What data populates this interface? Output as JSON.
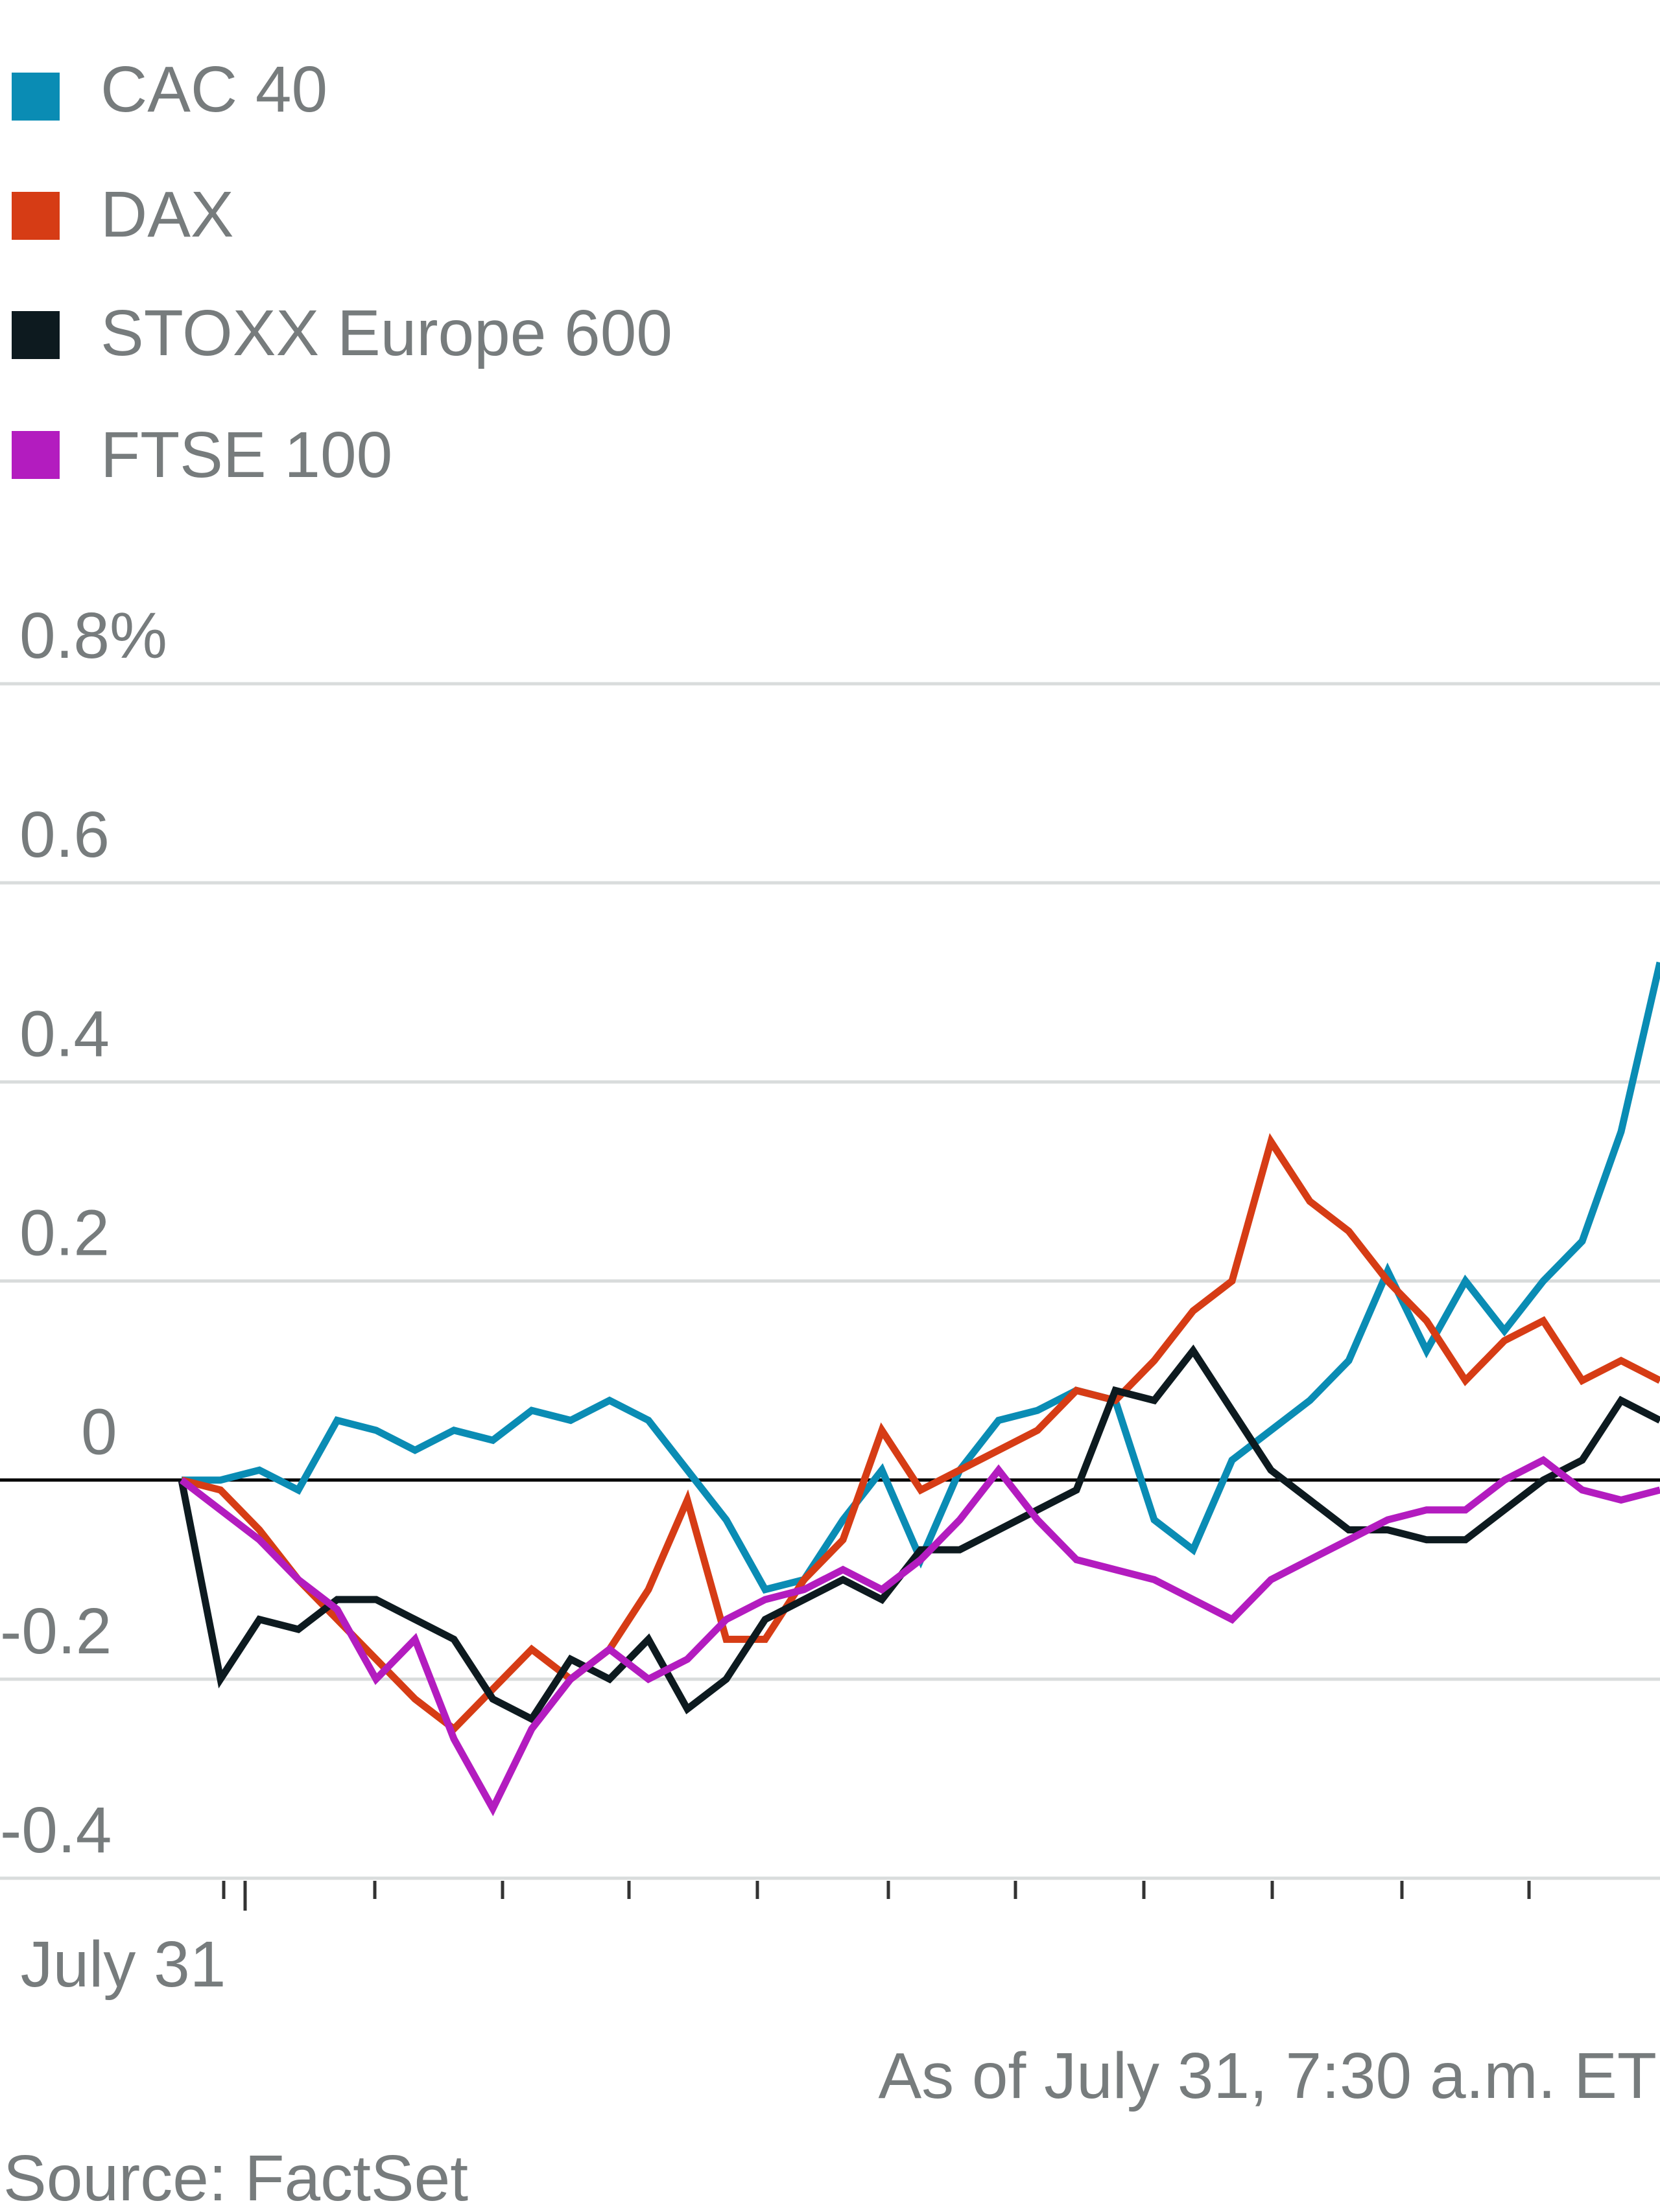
{
  "chart_data": {
    "type": "line",
    "legend_position": "top-left",
    "grid": true,
    "y_unit": "%",
    "ylim": [
      -0.4,
      0.8
    ],
    "y_ticks": [
      0.8,
      0.6,
      0.4,
      0.2,
      0,
      -0.2,
      -0.4
    ],
    "y_tick_labels": [
      "0.8%",
      "0.6",
      "0.4",
      "0.2",
      "0",
      "-0.2",
      "-0.4"
    ],
    "x_label": "July 31",
    "annotation": "As of July 31, 7:30 a.m. ET",
    "source": "Source: FactSet",
    "series": [
      {
        "name": "CAC 40",
        "color": "#0a8cb4",
        "points": [
          [
            0,
            0
          ],
          [
            1,
            0
          ],
          [
            2,
            0.01
          ],
          [
            3,
            -0.01
          ],
          [
            4,
            0.06
          ],
          [
            5,
            0.05
          ],
          [
            6,
            0.03
          ],
          [
            7,
            0.05
          ],
          [
            8,
            0.04
          ],
          [
            9,
            0.07
          ],
          [
            10,
            0.06
          ],
          [
            11,
            0.08
          ],
          [
            12,
            0.06
          ],
          [
            13,
            0.01
          ],
          [
            14,
            -0.04
          ],
          [
            15,
            -0.11
          ],
          [
            16,
            -0.1
          ],
          [
            17,
            -0.04
          ],
          [
            18,
            0.01
          ],
          [
            19,
            -0.08
          ],
          [
            20,
            0.01
          ],
          [
            21,
            0.06
          ],
          [
            22,
            0.07
          ],
          [
            23,
            0.09
          ],
          [
            24,
            0.08
          ],
          [
            25,
            -0.04
          ],
          [
            26,
            -0.07
          ],
          [
            27,
            0.02
          ],
          [
            28,
            0.05
          ],
          [
            29,
            0.08
          ],
          [
            30,
            0.12
          ],
          [
            31,
            0.21
          ],
          [
            32,
            0.13
          ],
          [
            33,
            0.2
          ],
          [
            34,
            0.15
          ],
          [
            35,
            0.2
          ],
          [
            36,
            0.24
          ],
          [
            37,
            0.35
          ],
          [
            38,
            0.52
          ]
        ]
      },
      {
        "name": "DAX",
        "color": "#d63c15",
        "points": [
          [
            0,
            0
          ],
          [
            1,
            -0.01
          ],
          [
            2,
            -0.05
          ],
          [
            3,
            -0.1
          ],
          [
            4,
            -0.14
          ],
          [
            5,
            -0.18
          ],
          [
            6,
            -0.22
          ],
          [
            7,
            -0.25
          ],
          [
            8,
            -0.21
          ],
          [
            9,
            -0.17
          ],
          [
            10,
            -0.2
          ],
          [
            11,
            -0.17
          ],
          [
            12,
            -0.11
          ],
          [
            13,
            -0.02
          ],
          [
            14,
            -0.16
          ],
          [
            15,
            -0.16
          ],
          [
            16,
            -0.1
          ],
          [
            17,
            -0.06
          ],
          [
            18,
            0.05
          ],
          [
            19,
            -0.01
          ],
          [
            20,
            0.01
          ],
          [
            21,
            0.03
          ],
          [
            22,
            0.05
          ],
          [
            23,
            0.09
          ],
          [
            24,
            0.08
          ],
          [
            25,
            0.12
          ],
          [
            26,
            0.17
          ],
          [
            27,
            0.2
          ],
          [
            28,
            0.34
          ],
          [
            29,
            0.28
          ],
          [
            30,
            0.25
          ],
          [
            31,
            0.2
          ],
          [
            32,
            0.16
          ],
          [
            33,
            0.1
          ],
          [
            34,
            0.14
          ],
          [
            35,
            0.16
          ],
          [
            36,
            0.1
          ],
          [
            37,
            0.12
          ],
          [
            38,
            0.1
          ]
        ]
      },
      {
        "name": "STOXX Europe 600",
        "color": "#0d1a1f",
        "points": [
          [
            0,
            0
          ],
          [
            1,
            -0.2
          ],
          [
            2,
            -0.14
          ],
          [
            3,
            -0.15
          ],
          [
            4,
            -0.12
          ],
          [
            5,
            -0.12
          ],
          [
            6,
            -0.14
          ],
          [
            7,
            -0.16
          ],
          [
            8,
            -0.22
          ],
          [
            9,
            -0.24
          ],
          [
            10,
            -0.18
          ],
          [
            11,
            -0.2
          ],
          [
            12,
            -0.16
          ],
          [
            13,
            -0.23
          ],
          [
            14,
            -0.2
          ],
          [
            15,
            -0.14
          ],
          [
            16,
            -0.12
          ],
          [
            17,
            -0.1
          ],
          [
            18,
            -0.12
          ],
          [
            19,
            -0.07
          ],
          [
            20,
            -0.07
          ],
          [
            21,
            -0.05
          ],
          [
            22,
            -0.03
          ],
          [
            23,
            -0.01
          ],
          [
            24,
            0.09
          ],
          [
            25,
            0.08
          ],
          [
            26,
            0.13
          ],
          [
            27,
            0.07
          ],
          [
            28,
            0.01
          ],
          [
            29,
            -0.02
          ],
          [
            30,
            -0.05
          ],
          [
            31,
            -0.05
          ],
          [
            32,
            -0.06
          ],
          [
            33,
            -0.06
          ],
          [
            34,
            -0.03
          ],
          [
            35,
            0
          ],
          [
            36,
            0.02
          ],
          [
            37,
            0.08
          ],
          [
            38,
            0.06
          ]
        ]
      },
      {
        "name": "FTSE 100",
        "color": "#b31cbf",
        "points": [
          [
            0,
            0
          ],
          [
            1,
            -0.03
          ],
          [
            2,
            -0.06
          ],
          [
            3,
            -0.1
          ],
          [
            4,
            -0.13
          ],
          [
            5,
            -0.2
          ],
          [
            6,
            -0.16
          ],
          [
            7,
            -0.26
          ],
          [
            8,
            -0.33
          ],
          [
            9,
            -0.25
          ],
          [
            10,
            -0.2
          ],
          [
            11,
            -0.17
          ],
          [
            12,
            -0.2
          ],
          [
            13,
            -0.18
          ],
          [
            14,
            -0.14
          ],
          [
            15,
            -0.12
          ],
          [
            16,
            -0.11
          ],
          [
            17,
            -0.09
          ],
          [
            18,
            -0.11
          ],
          [
            19,
            -0.08
          ],
          [
            20,
            -0.04
          ],
          [
            21,
            0.01
          ],
          [
            22,
            -0.04
          ],
          [
            23,
            -0.08
          ],
          [
            24,
            -0.09
          ],
          [
            25,
            -0.1
          ],
          [
            26,
            -0.12
          ],
          [
            27,
            -0.14
          ],
          [
            28,
            -0.1
          ],
          [
            29,
            -0.08
          ],
          [
            30,
            -0.06
          ],
          [
            31,
            -0.04
          ],
          [
            32,
            -0.03
          ],
          [
            33,
            -0.03
          ],
          [
            34,
            0
          ],
          [
            35,
            0.02
          ],
          [
            36,
            -0.01
          ],
          [
            37,
            -0.02
          ],
          [
            38,
            -0.01
          ]
        ]
      }
    ]
  }
}
